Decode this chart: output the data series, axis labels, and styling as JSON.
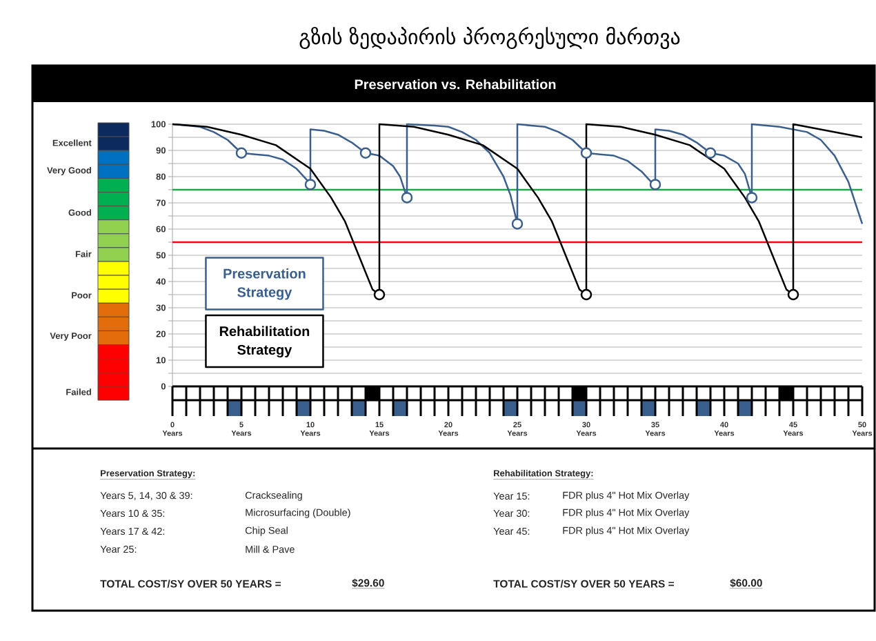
{
  "chart_data": {
    "type": "line",
    "title": "გზის ზედაპირის პროგრესული მართვა",
    "subtitle": "Preservation vs. Rehabilitation",
    "xlim": [
      0,
      50
    ],
    "xticks": [
      {
        "value": 0,
        "label": "0 Years"
      },
      {
        "value": 5,
        "label": "5 Years"
      },
      {
        "value": 10,
        "label": "10 Years"
      },
      {
        "value": 15,
        "label": "15 Years"
      },
      {
        "value": 20,
        "label": "20 Years"
      },
      {
        "value": 25,
        "label": "25 Years"
      },
      {
        "value": 30,
        "label": "30 Years"
      },
      {
        "value": 35,
        "label": "35 Years"
      },
      {
        "value": 40,
        "label": "40 Years"
      },
      {
        "value": 45,
        "label": "45 Years"
      },
      {
        "value": 50,
        "label": "50 Years"
      }
    ],
    "ylim": [
      0,
      100
    ],
    "yticks": [
      0,
      {
        "value": 5,
        "label": null
      },
      10,
      {
        "value": 15,
        "label": null
      },
      20,
      {
        "value": 25,
        "label": null
      },
      30,
      {
        "value": 35,
        "label": null
      },
      40,
      {
        "value": 45,
        "label": null
      },
      50,
      {
        "value": 55,
        "label": null
      },
      60,
      {
        "value": 65,
        "label": null
      },
      70,
      {
        "value": 75,
        "label": null
      },
      80,
      {
        "value": 85,
        "label": null
      },
      90,
      {
        "value": 95,
        "label": null
      },
      100
    ],
    "grid": "y",
    "legend": "bottom left",
    "series": [
      {
        "name": "Preservation Strategy",
        "color": "#3b5f8c",
        "x": [
          0,
          2,
          3,
          4,
          5,
          6,
          7,
          8,
          9,
          9.7,
          10,
          10,
          11,
          12,
          13,
          14,
          15,
          16,
          16.5,
          17,
          17,
          19,
          20,
          21,
          22,
          23,
          24,
          24.5,
          25,
          25,
          26,
          27,
          28,
          29,
          30,
          31,
          32,
          33,
          34,
          34.7,
          35,
          35,
          36,
          37,
          38,
          39,
          40,
          41,
          41.5,
          42,
          42,
          44,
          45,
          46,
          47,
          48,
          49,
          50
        ],
        "values": [
          100,
          99,
          97,
          94,
          89,
          88.5,
          88,
          86.5,
          83,
          79,
          77,
          98,
          97.5,
          96,
          93,
          89,
          88,
          84,
          80,
          72,
          100,
          99.5,
          99,
          97,
          94,
          89,
          80,
          73,
          62,
          100,
          99.5,
          99,
          97,
          94,
          89,
          88.5,
          88,
          86,
          82,
          78,
          77,
          98,
          97.5,
          96,
          93,
          89,
          88,
          85,
          81,
          72,
          100,
          99,
          98,
          97,
          94,
          88,
          78,
          62
        ]
      },
      {
        "name": "Rehabilitation Strategy",
        "color": "#000000",
        "x": [
          0,
          2.5,
          5,
          7.5,
          10,
          11.5,
          12.5,
          13.5,
          14.5,
          15,
          15,
          17.5,
          20,
          22.5,
          25,
          26.5,
          27.5,
          28.5,
          29.5,
          30,
          30,
          32.5,
          35,
          37.5,
          40,
          41.5,
          42.5,
          43.5,
          44.5,
          45,
          45,
          50
        ],
        "values": [
          100,
          99,
          96,
          92,
          83,
          72,
          63,
          50,
          37,
          35,
          100,
          99,
          96,
          92,
          83,
          72,
          63,
          50,
          37,
          35,
          100,
          99,
          96,
          92,
          83,
          72,
          63,
          50,
          37,
          35,
          100,
          95
        ]
      },
      {
        "type": "scatter",
        "marker": "circle",
        "color": "#3b5f8c",
        "x": [
          5,
          10,
          14,
          17,
          25,
          30,
          35,
          39,
          42
        ],
        "values": [
          89,
          77,
          89,
          72,
          62,
          89,
          77,
          89,
          72
        ]
      },
      {
        "type": "scatter",
        "marker": "circle",
        "color": "#000000",
        "x": [
          15,
          30,
          45
        ],
        "values": [
          35,
          35,
          35
        ]
      }
    ],
    "ref_lines": [
      {
        "axis": "y",
        "value": 75,
        "color": "#1aaa4a"
      },
      {
        "axis": "y",
        "value": 55,
        "color": "#ff0000"
      }
    ],
    "annotations": [
      "Preservation Strategy:",
      "Years 5, 14, 30 & 39:",
      "Cracksealing",
      "Years 10 & 35:",
      "Microsurfacing (Double)",
      "Years 17 & 42:",
      "Chip Seal",
      "Year 25:",
      "Mill & Pave",
      "TOTAL COST/SY OVER 50 YEARS =",
      "$29.60",
      "Rehabilitation Strategy:",
      "Year 15:",
      "FDR plus 4\" Hot Mix Overlay",
      "Year 30:",
      "FDR plus 4\" Hot Mix Overlay",
      "Year 45:",
      "FDR plus 4\" Hot Mix Overlay",
      "TOTAL COST/SY OVER 50 YEARS =",
      "$60.00",
      "Excellent",
      "Very Good",
      "Good",
      "Fair",
      "Poor",
      "Very Poor",
      "Failed"
    ]
  }
}
